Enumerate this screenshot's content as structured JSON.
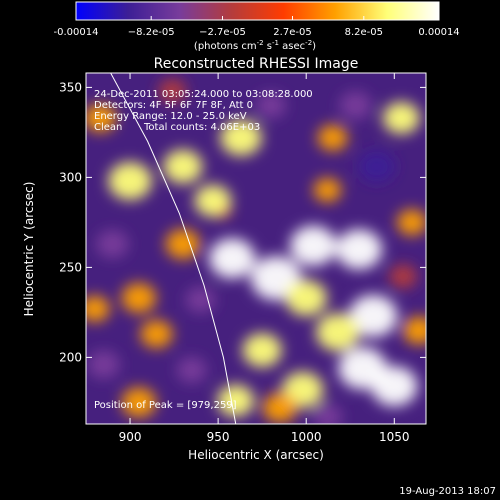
{
  "chart_data": {
    "type": "heatmap",
    "title": "Reconstructed RHESSI Image",
    "xlabel": "Heliocentric X (arcsec)",
    "ylabel": "Heliocentric Y (arcsec)",
    "xlim": [
      875,
      1068
    ],
    "ylim": [
      163,
      358
    ],
    "x_ticks": [
      900,
      950,
      1000,
      1050
    ],
    "y_ticks": [
      200,
      250,
      300,
      350
    ],
    "colorbar": {
      "range": [
        -0.00014,
        0.00014
      ],
      "tick_values": [
        -0.00014,
        -8.2e-05,
        -2.7e-05,
        2.7e-05,
        8.2e-05,
        0.00014
      ],
      "tick_labels": [
        "-0.00014",
        "−8.2e-05",
        "−2.7e-05",
        "2.7e-05",
        "8.2e-05",
        "0.00014"
      ],
      "units_label": "(photons cm",
      "units_exp1": "-2",
      "units_mid": " s",
      "units_exp2": "-1",
      "units_end": " asec",
      "units_exp3": "-2",
      "units_close": ")",
      "colormap_stops": [
        "#0000ff",
        "#3c1e96",
        "#783c9b",
        "#b43c3c",
        "#ff3c00",
        "#ffa000",
        "#ffff78",
        "#ffffff"
      ]
    },
    "annotations": [
      "24-Dec-2011 03:05:24.000 to 03:08:28.000",
      "Detectors: 4F 5F 6F 7F 8F, Att 0",
      "Energy Range: 12.0 - 25.0 keV",
      "Clean"
    ],
    "total_counts_label": "Total counts: 4.06E+03",
    "peak_label": "Position of Peak = [979,259]",
    "peak": [
      979,
      259
    ],
    "limb_curve": [
      [
        889,
        358
      ],
      [
        910,
        320
      ],
      [
        928,
        280
      ],
      [
        942,
        240
      ],
      [
        953,
        200
      ],
      [
        960,
        163
      ]
    ],
    "image_blobs": [
      {
        "x": 952,
        "y": 282,
        "v": 0.0
      },
      {
        "x": 900,
        "y": 298,
        "v": 0.00011
      },
      {
        "x": 930,
        "y": 306,
        "v": 9e-05
      },
      {
        "x": 963,
        "y": 322,
        "v": 0.0001
      },
      {
        "x": 947,
        "y": 287,
        "v": 8e-05
      },
      {
        "x": 958,
        "y": 255,
        "v": 0.00012
      },
      {
        "x": 983,
        "y": 244,
        "v": 0.00014
      },
      {
        "x": 1004,
        "y": 262,
        "v": 0.00012
      },
      {
        "x": 1030,
        "y": 260,
        "v": 0.00012
      },
      {
        "x": 1038,
        "y": 223,
        "v": 0.00013
      },
      {
        "x": 1032,
        "y": 194,
        "v": 0.00013
      },
      {
        "x": 1050,
        "y": 184,
        "v": 0.00012
      },
      {
        "x": 1018,
        "y": 214,
        "v": 0.00011
      },
      {
        "x": 1000,
        "y": 233,
        "v": 0.0001
      },
      {
        "x": 975,
        "y": 204,
        "v": 9e-05
      },
      {
        "x": 998,
        "y": 182,
        "v": 0.0001
      },
      {
        "x": 960,
        "y": 176,
        "v": 8e-05
      },
      {
        "x": 985,
        "y": 172,
        "v": 7e-05
      },
      {
        "x": 1054,
        "y": 333,
        "v": 8e-05
      },
      {
        "x": 930,
        "y": 263,
        "v": 7e-05
      },
      {
        "x": 905,
        "y": 233,
        "v": 7e-05
      },
      {
        "x": 915,
        "y": 213,
        "v": 6e-05
      },
      {
        "x": 880,
        "y": 227,
        "v": 5e-05
      },
      {
        "x": 883,
        "y": 333,
        "v": 6e-05
      },
      {
        "x": 905,
        "y": 175,
        "v": 7e-05
      },
      {
        "x": 1015,
        "y": 322,
        "v": 5e-05
      },
      {
        "x": 1060,
        "y": 275,
        "v": 5e-05
      },
      {
        "x": 1064,
        "y": 215,
        "v": 6e-05
      },
      {
        "x": 1012,
        "y": 293,
        "v": 4e-05
      },
      {
        "x": 940,
        "y": 232,
        "v": -5e-05
      },
      {
        "x": 1040,
        "y": 306,
        "v": -8e-05
      },
      {
        "x": 1028,
        "y": 340,
        "v": -6e-05
      },
      {
        "x": 890,
        "y": 263,
        "v": -6e-05
      },
      {
        "x": 935,
        "y": 193,
        "v": -5e-05
      },
      {
        "x": 980,
        "y": 340,
        "v": -5e-05
      },
      {
        "x": 1055,
        "y": 245,
        "v": -4e-05
      },
      {
        "x": 1012,
        "y": 167,
        "v": -5e-05
      },
      {
        "x": 924,
        "y": 348,
        "v": -4e-05
      },
      {
        "x": 885,
        "y": 196,
        "v": -6e-05
      }
    ]
  },
  "footer": {
    "timestamp": "19-Aug-2013 18:07"
  }
}
